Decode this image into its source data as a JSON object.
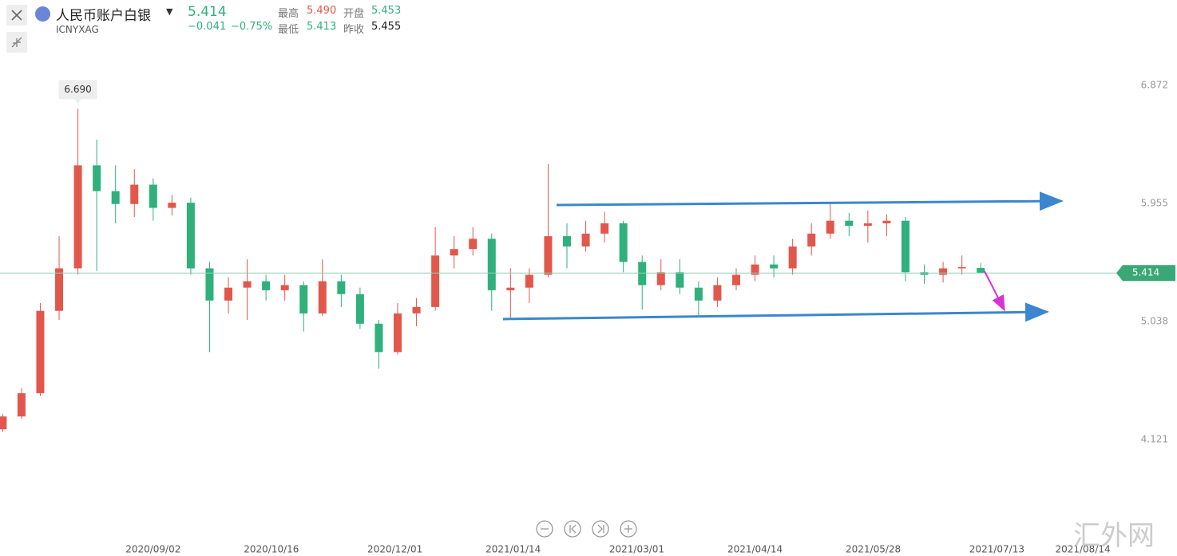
{
  "header": {
    "title": "人民币账户白银",
    "code": "ICNYXAG",
    "price": "5.414",
    "change": "−0.041",
    "change_pct": "−0.75%",
    "high_label": "最高",
    "high": "5.490",
    "open_label": "开盘",
    "open": "5.453",
    "low_label": "最低",
    "low": "5.413",
    "prev_label": "昨收",
    "prev_close": "5.455"
  },
  "watermark": "汇外网",
  "chart_data": {
    "type": "candlestick",
    "up_color": "#e2574c",
    "down_color": "#2fb07c",
    "x": [
      "2020/07/08",
      "2020/07/15",
      "2020/07/22",
      "2020/07/29",
      "2020/08/05",
      "2020/08/12",
      "2020/08/19",
      "2020/08/26",
      "2020/09/02",
      "2020/09/09",
      "2020/09/16",
      "2020/09/23",
      "2020/09/30",
      "2020/10/07",
      "2020/10/14",
      "2020/10/21",
      "2020/10/28",
      "2020/11/04",
      "2020/11/11",
      "2020/11/18",
      "2020/11/25",
      "2020/12/02",
      "2020/12/09",
      "2020/12/16",
      "2020/12/23",
      "2020/12/30",
      "2021/01/06",
      "2021/01/13",
      "2021/01/20",
      "2021/01/27",
      "2021/02/03",
      "2021/02/10",
      "2021/02/17",
      "2021/02/24",
      "2021/03/03",
      "2021/03/10",
      "2021/03/17",
      "2021/03/24",
      "2021/03/31",
      "2021/04/07",
      "2021/04/14",
      "2021/04/21",
      "2021/04/28",
      "2021/05/05",
      "2021/05/12",
      "2021/05/19",
      "2021/05/26",
      "2021/06/02",
      "2021/06/09",
      "2021/06/16",
      "2021/06/23",
      "2021/06/30",
      "2021/07/07"
    ],
    "open": [
      4.2,
      4.3,
      4.48,
      5.12,
      5.45,
      6.25,
      6.05,
      5.95,
      6.1,
      5.92,
      5.96,
      5.45,
      5.2,
      5.3,
      5.35,
      5.28,
      5.32,
      5.1,
      5.35,
      5.25,
      5.02,
      4.8,
      5.1,
      5.15,
      5.55,
      5.6,
      5.68,
      5.28,
      5.3,
      5.4,
      5.7,
      5.62,
      5.72,
      5.8,
      5.5,
      5.32,
      5.42,
      5.3,
      5.2,
      5.32,
      5.4,
      5.48,
      5.45,
      5.62,
      5.72,
      5.82,
      5.78,
      5.8,
      5.82,
      5.42,
      5.4,
      5.45,
      5.453
    ],
    "high": [
      4.32,
      4.52,
      5.18,
      5.7,
      6.69,
      6.45,
      6.25,
      6.22,
      6.15,
      6.02,
      6.0,
      5.5,
      5.38,
      5.52,
      5.4,
      5.4,
      5.35,
      5.52,
      5.4,
      5.3,
      5.05,
      5.18,
      5.22,
      5.77,
      5.7,
      5.77,
      5.72,
      5.45,
      5.45,
      6.26,
      5.8,
      5.82,
      5.89,
      5.82,
      5.55,
      5.52,
      5.52,
      5.35,
      5.38,
      5.45,
      5.55,
      5.55,
      5.68,
      5.8,
      5.95,
      5.88,
      5.9,
      5.87,
      5.85,
      5.48,
      5.5,
      5.55,
      5.49
    ],
    "low": [
      4.18,
      4.28,
      4.46,
      5.05,
      5.4,
      5.43,
      5.8,
      5.85,
      5.82,
      5.86,
      5.4,
      4.8,
      5.1,
      5.05,
      5.2,
      5.2,
      4.96,
      5.08,
      5.15,
      4.98,
      4.67,
      4.78,
      5.0,
      5.12,
      5.45,
      5.55,
      5.12,
      5.05,
      5.18,
      5.38,
      5.45,
      5.58,
      5.65,
      5.42,
      5.13,
      5.28,
      5.25,
      5.07,
      5.15,
      5.28,
      5.35,
      5.38,
      5.4,
      5.55,
      5.68,
      5.7,
      5.65,
      5.7,
      5.35,
      5.33,
      5.34,
      5.4,
      5.413
    ],
    "close": [
      4.3,
      4.48,
      5.12,
      5.45,
      6.25,
      6.05,
      5.95,
      6.1,
      5.92,
      5.96,
      5.45,
      5.2,
      5.3,
      5.35,
      5.28,
      5.32,
      5.1,
      5.35,
      5.25,
      5.02,
      4.8,
      5.1,
      5.15,
      5.55,
      5.6,
      5.68,
      5.28,
      5.3,
      5.4,
      5.7,
      5.62,
      5.72,
      5.8,
      5.5,
      5.32,
      5.42,
      5.3,
      5.2,
      5.32,
      5.4,
      5.48,
      5.45,
      5.62,
      5.72,
      5.82,
      5.78,
      5.8,
      5.82,
      5.42,
      5.4,
      5.45,
      5.46,
      5.414
    ],
    "xlim": [
      "2020/07/07",
      "2021/09/02"
    ],
    "xticks": [
      "2020/09/02",
      "2020/10/16",
      "2020/12/01",
      "2021/01/14",
      "2021/03/01",
      "2021/04/14",
      "2021/05/28",
      "2021/07/13",
      "2021/08/14"
    ],
    "ylim": [
      3.6,
      7.2
    ],
    "yticks": [
      6.872,
      5.955,
      5.038,
      4.121
    ],
    "current_price": 5.414,
    "high_marker": {
      "value": 6.69,
      "label": "6.690"
    }
  }
}
